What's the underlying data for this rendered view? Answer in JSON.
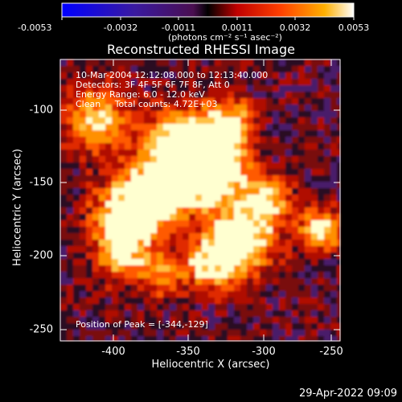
{
  "colorbar": {
    "ticks": [
      "-0.0053",
      "-0.0032",
      "-0.0011",
      "0.0011",
      "0.0032",
      "0.0053"
    ],
    "units": "(photons cm⁻² s⁻¹ asec⁻²)"
  },
  "image": {
    "title": "Reconstructed RHESSI Image",
    "time_range": "10-Mar-2004 12:12:08.000 to 12:13:40.000",
    "detectors": "Detectors: 3F 4F 5F 6F 7F 8F, Att 0",
    "energy_range": "Energy Range: 6.0 - 12.0 keV",
    "algorithm_counts": "Clean     Total counts: 4.72E+03",
    "peak_position": "Position of Peak = [-344,-129]"
  },
  "axes": {
    "xlabel": "Heliocentric X (arcsec)",
    "ylabel": "Heliocentric Y (arcsec)",
    "xticks": [
      "-400",
      "-350",
      "-300",
      "-250"
    ],
    "yticks": [
      "-100",
      "-150",
      "-200",
      "-250"
    ]
  },
  "footer": {
    "date": "29-Apr-2022 09:09"
  }
}
